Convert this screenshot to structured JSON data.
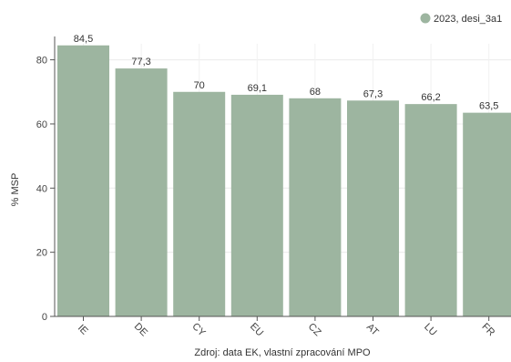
{
  "chart_data": {
    "type": "bar",
    "categories": [
      "IE",
      "DE",
      "CY",
      "EU",
      "CZ",
      "AT",
      "LU",
      "FR"
    ],
    "series": [
      {
        "name": "2023, desi_3a1",
        "values": [
          84.5,
          77.3,
          70,
          69.1,
          68,
          67.3,
          66.2,
          63.5
        ],
        "labels": [
          "84,5",
          "77,3",
          "70",
          "69,1",
          "68",
          "67,3",
          "66,2",
          "63,5"
        ],
        "color": "#9db5a0"
      }
    ],
    "ylabel": "% MSP",
    "xlabel": "Zdroj: data EK, vlastní zpracování MPO",
    "ylim": [
      0,
      85
    ],
    "yticks": [
      0,
      20,
      40,
      60,
      80
    ],
    "grid": true,
    "legend_position": "top-right"
  }
}
